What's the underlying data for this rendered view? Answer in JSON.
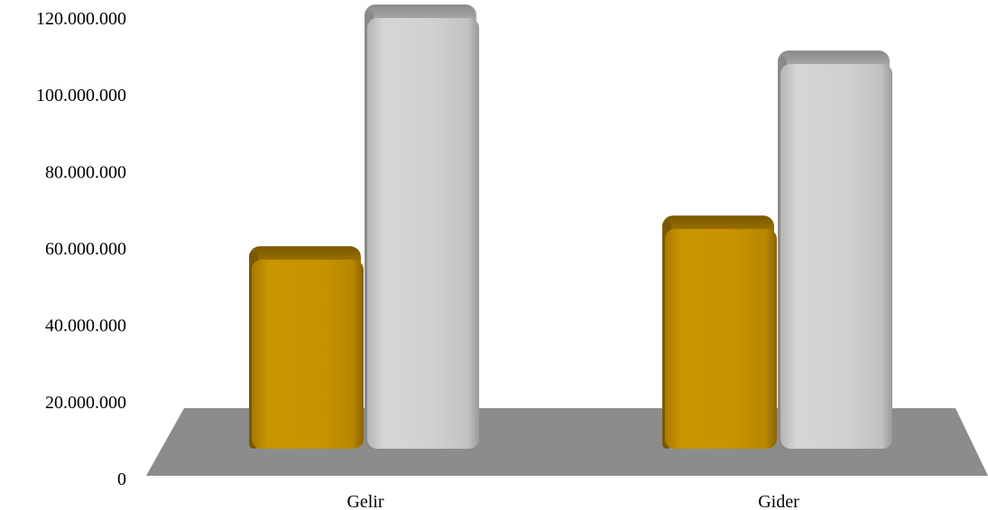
{
  "chart_data": {
    "type": "bar",
    "categories": [
      "Gelir",
      "Gider"
    ],
    "series": [
      {
        "values": [
          57000000,
          65000000
        ],
        "color": "#c89400"
      },
      {
        "values": [
          120000000,
          108000000
        ],
        "color": "#cfcfcf"
      }
    ],
    "y_ticks": [
      "0",
      "20.000.000",
      "40.000.000",
      "60.000.000",
      "80.000.000",
      "100.000.000",
      "120.000.000"
    ],
    "ylim": [
      0,
      120000000
    ],
    "grid": false,
    "legend": "none",
    "style": "3d-bars-on-floor",
    "floor_color": "#8c8c8c"
  }
}
